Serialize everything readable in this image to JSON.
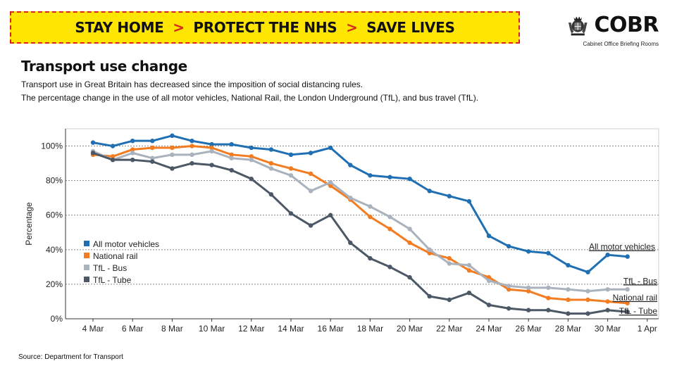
{
  "banner": {
    "parts": [
      "STAY HOME",
      "PROTECT THE NHS",
      "SAVE LIVES"
    ],
    "separator": ">"
  },
  "logo": {
    "title": "COBR",
    "subtitle": "Cabinet Office Briefing Rooms"
  },
  "header": {
    "title": "Transport use change",
    "line1": "Transport use in Great Britain has decreased since the imposition of social distancing rules.",
    "line2": "The percentage change in the use of all motor vehicles, National Rail, the London Underground (TfL), and bus travel (TfL)."
  },
  "footer": {
    "source": "Source: Department for Transport"
  },
  "colors": {
    "banner_bg": "#ffe600",
    "banner_border": "#d7261e"
  },
  "chart_data": {
    "type": "line",
    "ylabel": "Percentage",
    "xlabel": "",
    "ylim": [
      0,
      110
    ],
    "yticks": [
      0,
      20,
      40,
      60,
      80,
      100
    ],
    "ytick_labels": [
      "0%",
      "20%",
      "40%",
      "60%",
      "80%",
      "100%"
    ],
    "xticks": [
      "4 Mar",
      "6 Mar",
      "8 Mar",
      "10 Mar",
      "12 Mar",
      "14 Mar",
      "16 Mar",
      "18 Mar",
      "20 Mar",
      "22 Mar",
      "24 Mar",
      "26 Mar",
      "28 Mar",
      "30 Mar",
      "1 Apr"
    ],
    "x": [
      "4 Mar",
      "5 Mar",
      "6 Mar",
      "7 Mar",
      "8 Mar",
      "9 Mar",
      "10 Mar",
      "11 Mar",
      "12 Mar",
      "13 Mar",
      "14 Mar",
      "15 Mar",
      "16 Mar",
      "17 Mar",
      "18 Mar",
      "19 Mar",
      "20 Mar",
      "21 Mar",
      "22 Mar",
      "23 Mar",
      "24 Mar",
      "25 Mar",
      "26 Mar",
      "27 Mar",
      "28 Mar",
      "29 Mar",
      "30 Mar",
      "31 Mar"
    ],
    "grid": true,
    "legend_position": "left",
    "series": [
      {
        "name": "All motor vehicles",
        "end_label": "All motor vehicles",
        "color": "#1f6fb2",
        "values": [
          102,
          100,
          103,
          103,
          106,
          103,
          101,
          101,
          99,
          98,
          95,
          96,
          99,
          89,
          83,
          82,
          81,
          74,
          71,
          68,
          48,
          42,
          39,
          38,
          31,
          27,
          37,
          36
        ]
      },
      {
        "name": "National rail",
        "end_label": "National rail",
        "color": "#f47c20",
        "values": [
          95,
          94,
          98,
          99,
          99,
          100,
          99,
          95,
          94,
          90,
          87,
          84,
          77,
          69,
          59,
          52,
          44,
          38,
          35,
          28,
          24,
          17,
          16,
          12,
          11,
          11,
          10,
          9
        ]
      },
      {
        "name": "TfL - Bus",
        "end_label": "TfL - Bus",
        "color": "#a9b2bd",
        "values": [
          97,
          92,
          96,
          93,
          95,
          95,
          97,
          93,
          92,
          87,
          83,
          74,
          79,
          70,
          65,
          59,
          52,
          40,
          32,
          31,
          22,
          19,
          18,
          18,
          17,
          16,
          17,
          17
        ]
      },
      {
        "name": "TfL - Tube",
        "end_label": "TfL - Tube",
        "color": "#4d5866",
        "values": [
          96,
          92,
          92,
          91,
          87,
          90,
          89,
          86,
          81,
          72,
          61,
          54,
          60,
          44,
          35,
          30,
          24,
          13,
          11,
          15,
          8,
          6,
          5,
          5,
          3,
          3,
          5,
          4
        ]
      }
    ]
  }
}
